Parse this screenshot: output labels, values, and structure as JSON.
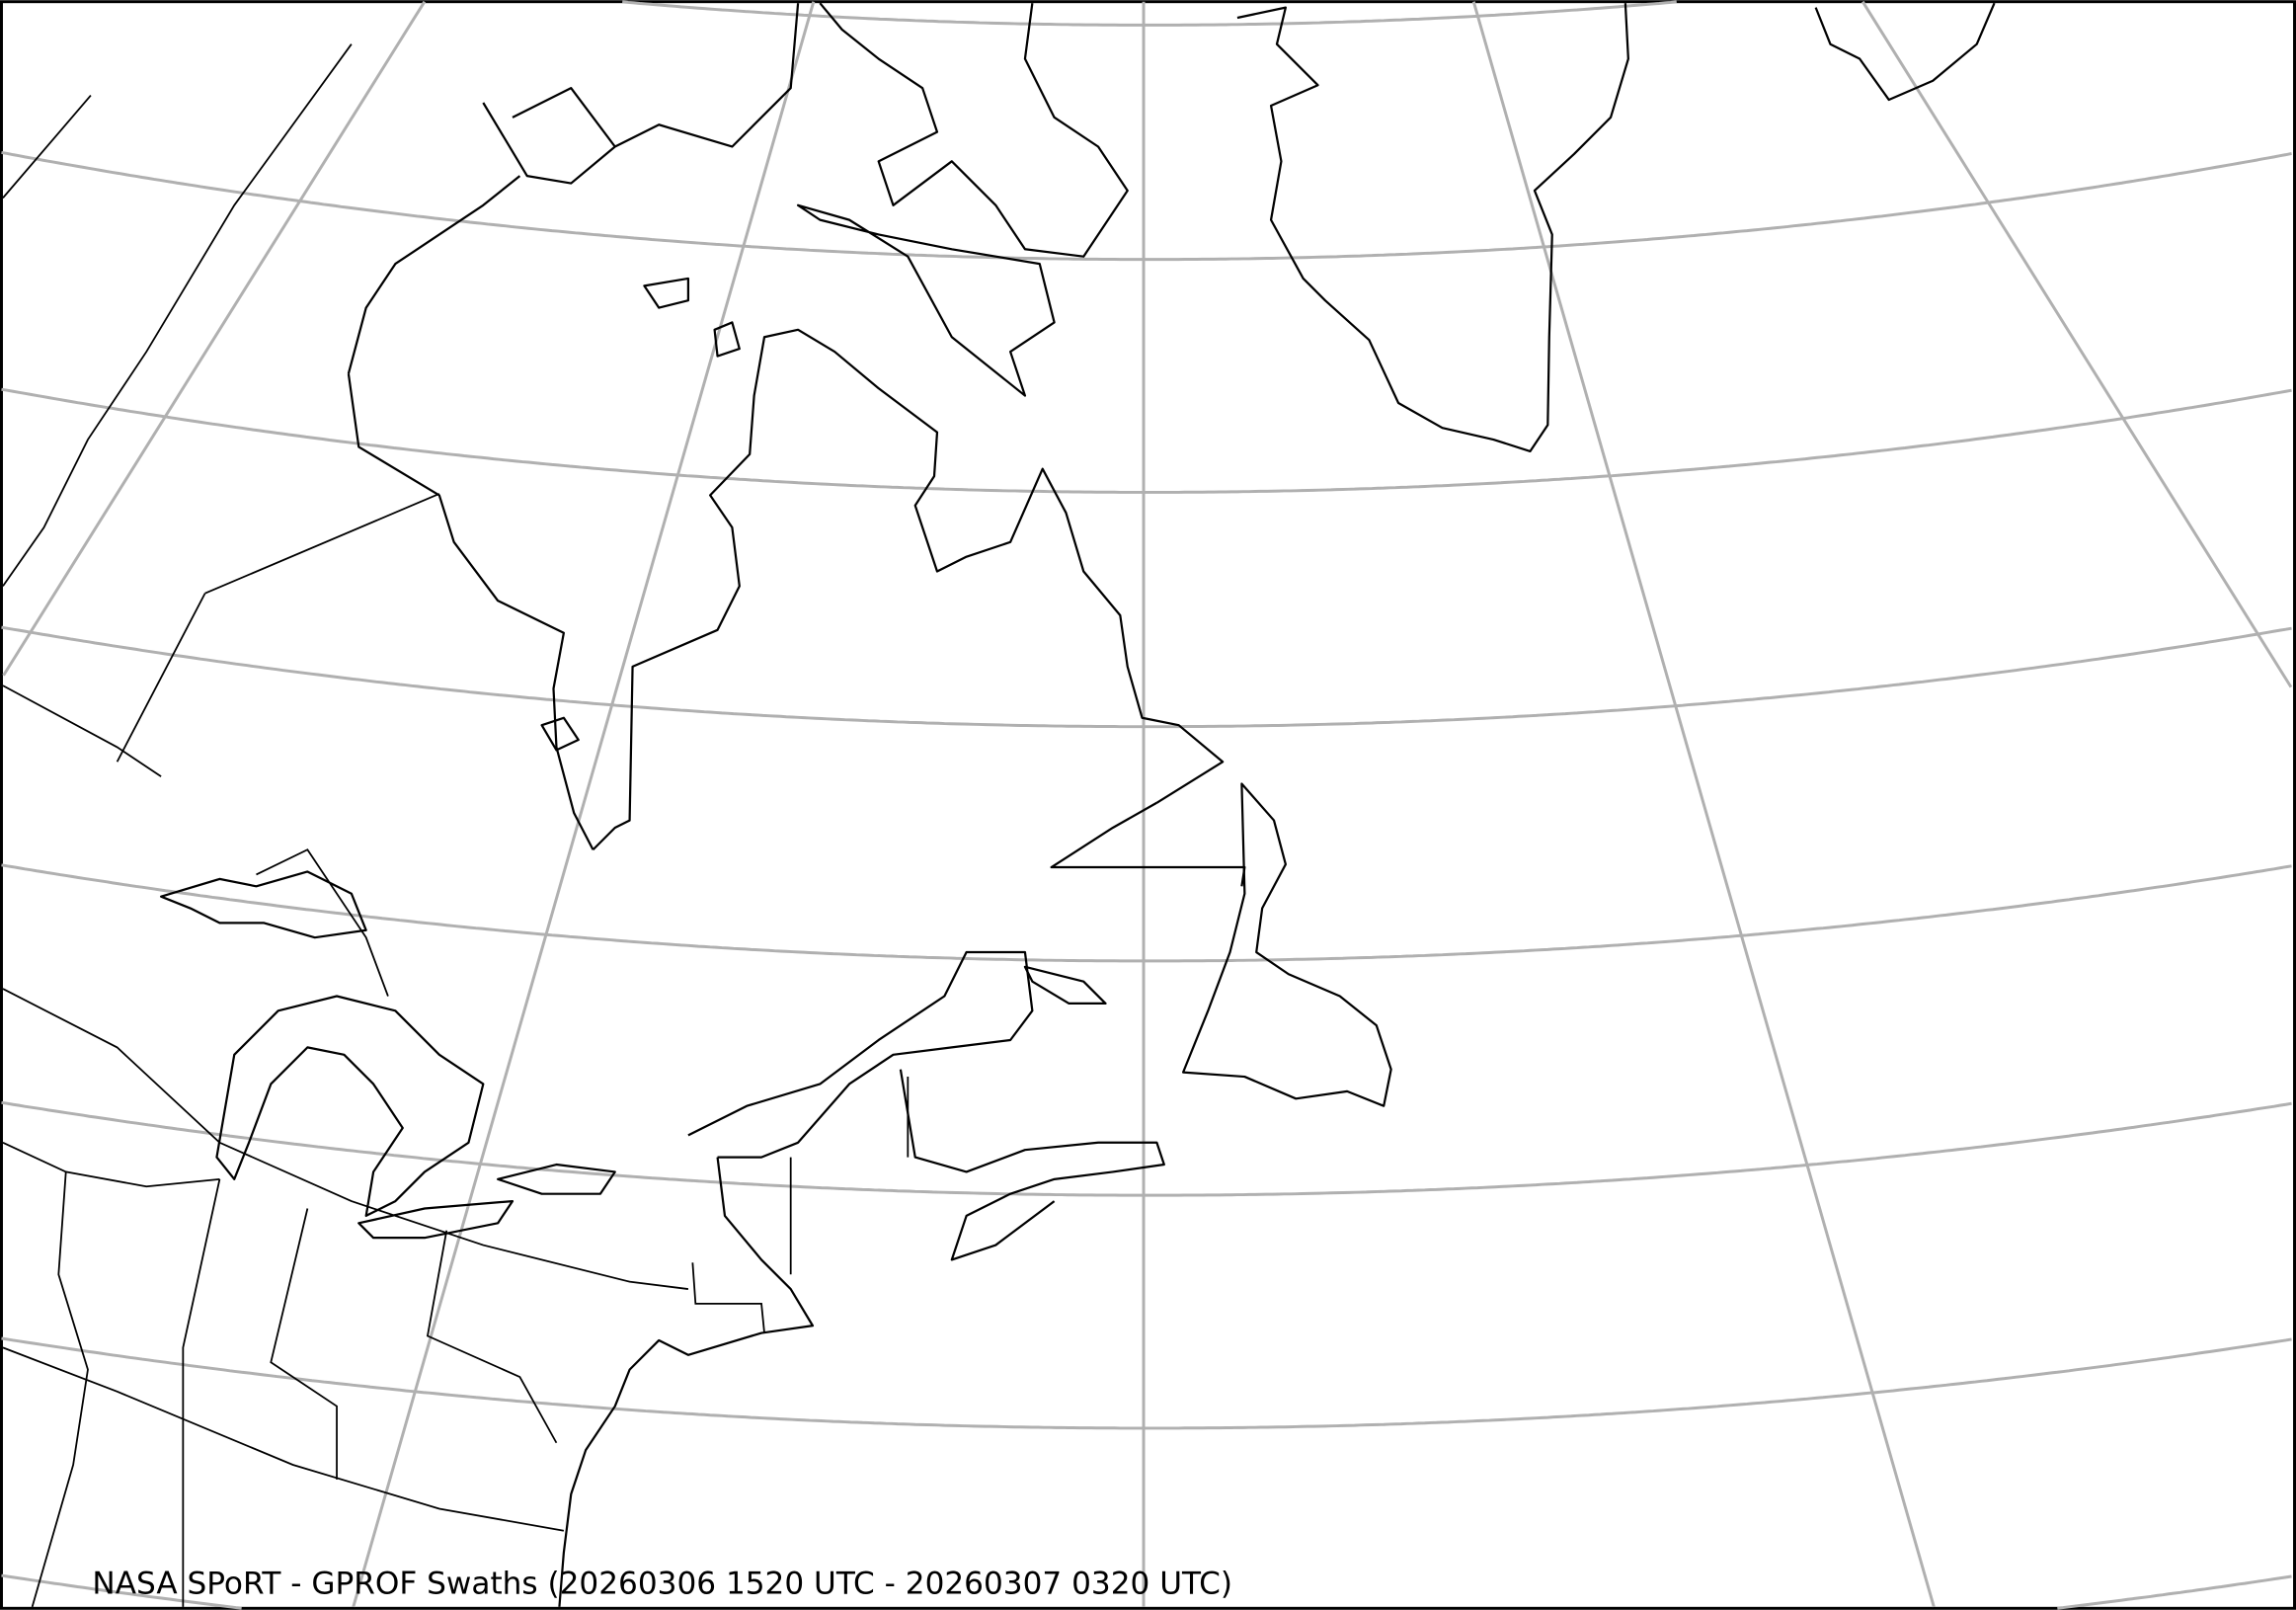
{
  "map": {
    "title": "NASA SPoRT - GPROF Swaths (20260306 1520 UTC - 20260307 0320 UTC)",
    "projection": "conic",
    "region": "Northeastern North America, Greenland, North Atlantic",
    "colors": {
      "graticule": "#b0b0b0",
      "coastline": "#000000",
      "background": "#ffffff"
    }
  }
}
